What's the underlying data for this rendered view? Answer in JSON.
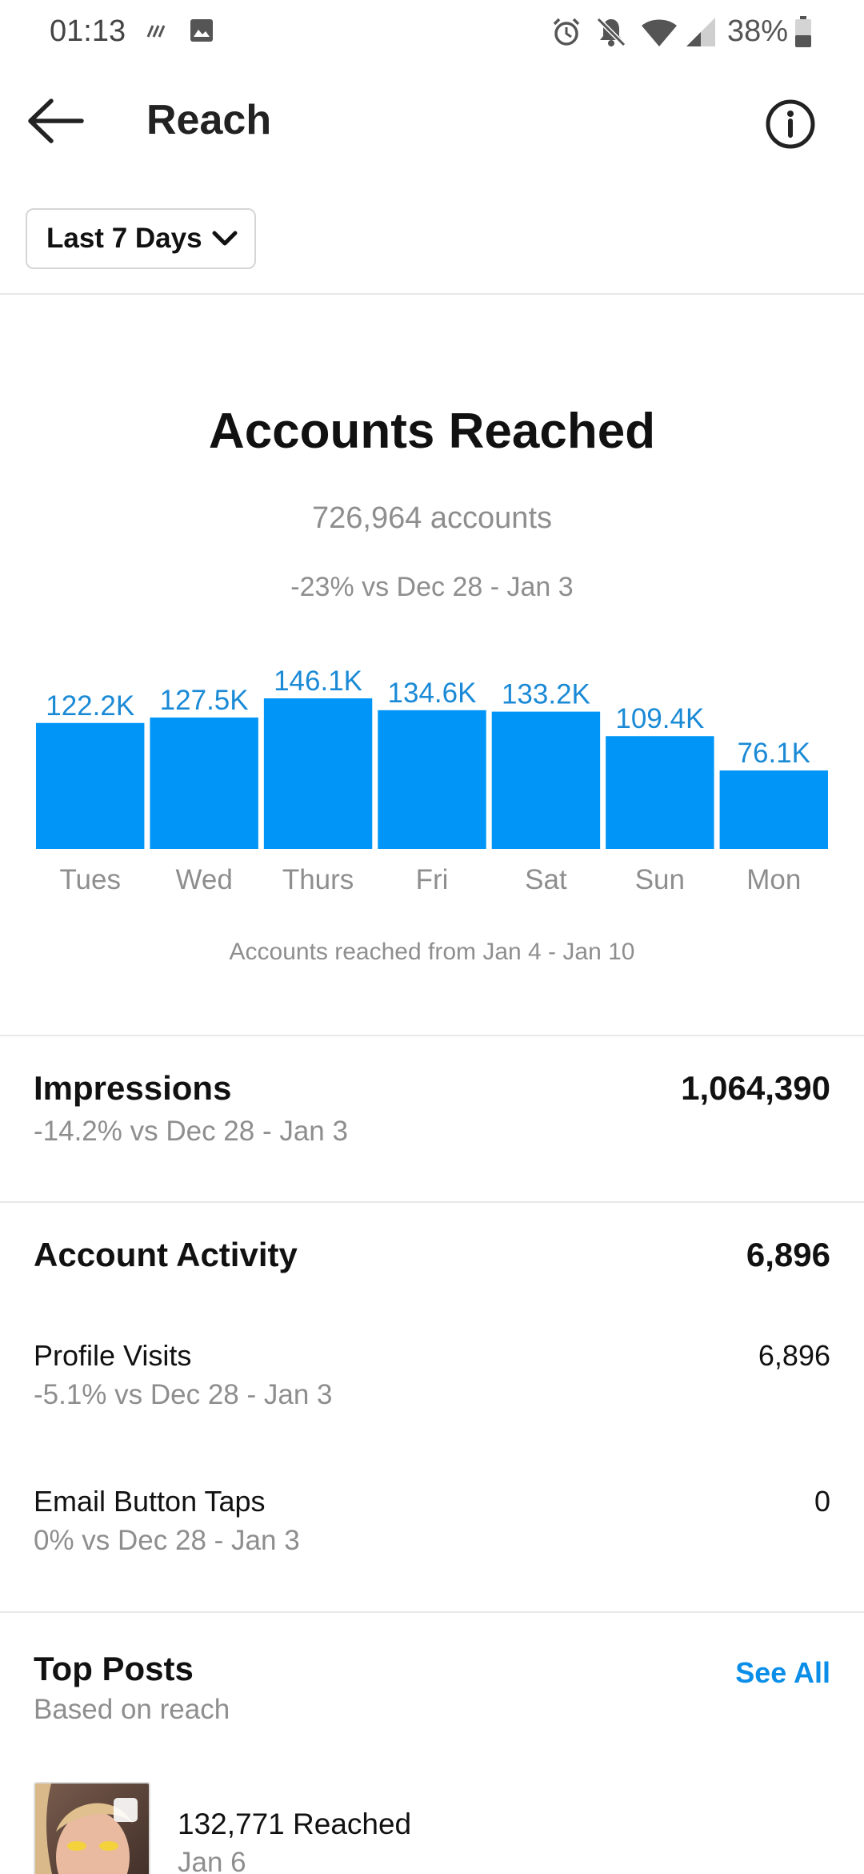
{
  "status_bar": {
    "time": "01:13",
    "battery": "38%"
  },
  "header": {
    "title": "Reach",
    "back_icon": "arrow-left-icon",
    "info_icon": "info-circle-icon"
  },
  "date_range": {
    "label": "Last 7 Days"
  },
  "accounts_reached": {
    "title": "Accounts Reached",
    "count_text": "726,964 accounts",
    "comparison": "-23% vs Dec 28 - Jan 3",
    "caption": "Accounts reached from Jan 4 - Jan 10"
  },
  "chart_data": {
    "type": "bar",
    "categories": [
      "Tues",
      "Wed",
      "Thurs",
      "Fri",
      "Sat",
      "Sun",
      "Mon"
    ],
    "values": [
      122.2,
      127.5,
      146.1,
      134.6,
      133.2,
      109.4,
      76.1
    ],
    "value_labels": [
      "122.2K",
      "127.5K",
      "146.1K",
      "134.6K",
      "133.2K",
      "109.4K",
      "76.1K"
    ],
    "title": "",
    "xlabel": "",
    "ylabel": "",
    "grid": false,
    "color": "#0095f6",
    "label_color": "#1a8ad6"
  },
  "impressions": {
    "label": "Impressions",
    "value": "1,064,390",
    "comparison": "-14.2% vs Dec 28 - Jan 3"
  },
  "account_activity": {
    "label": "Account Activity",
    "value": "6,896",
    "items": [
      {
        "label": "Profile Visits",
        "value": "6,896",
        "comparison": "-5.1% vs Dec 28 - Jan 3"
      },
      {
        "label": "Email Button Taps",
        "value": "0",
        "comparison": "0% vs Dec 28 - Jan 3"
      }
    ]
  },
  "top_posts": {
    "label": "Top Posts",
    "subtitle": "Based on reach",
    "see_all": "See All",
    "posts": [
      {
        "reached": "132,771 Reached",
        "date": "Jan 6"
      }
    ]
  },
  "colors": {
    "accent": "#0095f6",
    "link": "#0a8ee8",
    "muted_text": "#8e8e8e"
  }
}
